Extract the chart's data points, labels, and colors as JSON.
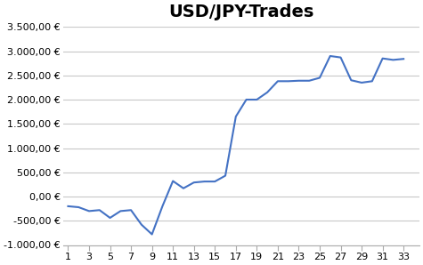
{
  "title": "USD/JPY-Trades",
  "x_values": [
    1,
    2,
    3,
    4,
    5,
    6,
    7,
    8,
    9,
    10,
    11,
    12,
    13,
    14,
    15,
    16,
    17,
    18,
    19,
    20,
    21,
    22,
    23,
    24,
    25,
    26,
    27,
    28,
    29,
    30,
    31,
    32,
    33
  ],
  "y_values": [
    -200,
    -220,
    -300,
    -280,
    -440,
    -300,
    -280,
    -580,
    -780,
    -200,
    320,
    170,
    290,
    310,
    310,
    430,
    1650,
    2000,
    2000,
    2150,
    2380,
    2380,
    2390,
    2390,
    2450,
    2900,
    2870,
    2400,
    2350,
    2380,
    2850,
    2820,
    2840
  ],
  "line_color": "#4472C4",
  "background_color": "#ffffff",
  "ylim": [
    -1000,
    3500
  ],
  "yticks": [
    -1000,
    -500,
    0,
    500,
    1000,
    1500,
    2000,
    2500,
    3000,
    3500
  ],
  "xticks": [
    1,
    3,
    5,
    7,
    9,
    11,
    13,
    15,
    17,
    19,
    21,
    23,
    25,
    27,
    29,
    31,
    33
  ],
  "grid_color": "#c8c8c8",
  "title_fontsize": 14,
  "tick_fontsize": 8
}
